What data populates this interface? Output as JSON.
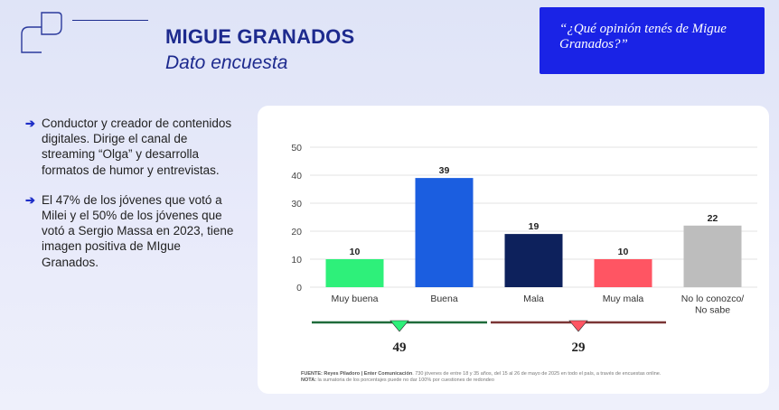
{
  "header": {
    "title": "MIGUE GRANADOS",
    "subtitle": "Dato encuesta",
    "question": "“¿Qué opinión tenés de Migue Granados?”"
  },
  "bullets": [
    "Conductor y creador de contenidos digitales. Dirige el canal de streaming “Olga” y desarrolla formatos de humor y entrevistas.",
    "El 47% de los jóvenes que votó a Milei y el 50% de los jóvenes que votó a Sergio Massa en 2023, tiene imagen positiva de MIgue Granados."
  ],
  "chart_data": {
    "type": "bar",
    "categories": [
      "Muy buena",
      "Buena",
      "Mala",
      "Muy mala",
      "No lo conozco/ No sabe"
    ],
    "values": [
      10,
      39,
      19,
      10,
      22
    ],
    "colors": [
      "#2ef07a",
      "#1b5ee0",
      "#0d215c",
      "#ff5563",
      "#bdbdbd"
    ],
    "ylim": [
      0,
      50
    ],
    "yticks": [
      0,
      10,
      20,
      30,
      40,
      50
    ],
    "grid": true,
    "summary": [
      {
        "value": "49",
        "color": "#2ef07a"
      },
      {
        "value": "29",
        "color": "#ff5563"
      }
    ]
  },
  "footer": {
    "source_label": "FUENTE: Reyes Piladoro | Enter Comunicación",
    "source_text": ". 730 jóvenes de entre 18 y 35 años, del 15 al 26 de mayo de 2025 en todo el país, a través de encuestas online.",
    "note_label": "NOTA:",
    "note_text": " la sumatoria de los porcentajes puede no dar 100% por cuestiones de redondeo"
  }
}
